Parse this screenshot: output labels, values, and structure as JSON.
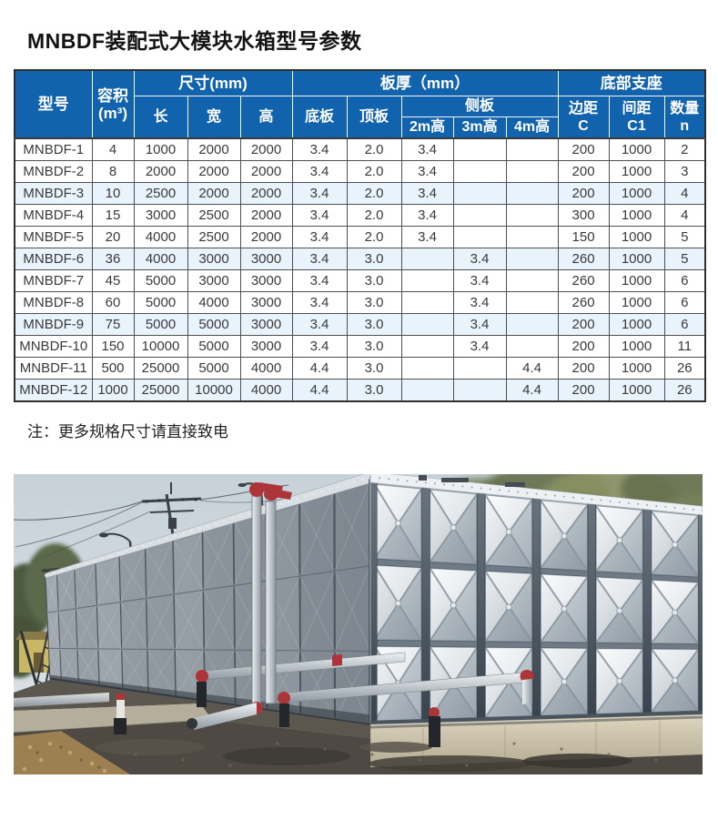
{
  "page": {
    "title": "MNBDF装配式大模块水箱型号参数",
    "note": "注：更多规格尺寸请直接致电"
  },
  "table": {
    "headers": {
      "model": "型号",
      "capacity_line1": "容积",
      "capacity_line2": "(m³)",
      "size_group": "尺寸(mm)",
      "length": "长",
      "width": "宽",
      "height": "高",
      "thickness_group": "板厚（mm）",
      "bottom_plate": "底板",
      "top_plate": "顶板",
      "side_plate_group": "侧板",
      "side_2m": "2m高",
      "side_3m": "3m高",
      "side_4m": "4m高",
      "support_group": "底部支座",
      "edge_line1": "边距",
      "edge_line2": "C",
      "spacing_line1": "间距",
      "spacing_line2": "C1",
      "qty_line1": "数量",
      "qty_line2": "n"
    },
    "rows": [
      [
        "MNBDF-1",
        "4",
        "1000",
        "2000",
        "2000",
        "3.4",
        "2.0",
        "3.4",
        "",
        "",
        "200",
        "1000",
        "2"
      ],
      [
        "MNBDF-2",
        "8",
        "2000",
        "2000",
        "2000",
        "3.4",
        "2.0",
        "3.4",
        "",
        "",
        "200",
        "1000",
        "3"
      ],
      [
        "MNBDF-3",
        "10",
        "2500",
        "2000",
        "2000",
        "3.4",
        "2.0",
        "3.4",
        "",
        "",
        "200",
        "1000",
        "4"
      ],
      [
        "MNBDF-4",
        "15",
        "3000",
        "2500",
        "2000",
        "3.4",
        "2.0",
        "3.4",
        "",
        "",
        "300",
        "1000",
        "4"
      ],
      [
        "MNBDF-5",
        "20",
        "4000",
        "2500",
        "2000",
        "3.4",
        "2.0",
        "3.4",
        "",
        "",
        "150",
        "1000",
        "5"
      ],
      [
        "MNBDF-6",
        "36",
        "4000",
        "3000",
        "3000",
        "3.4",
        "3.0",
        "",
        "3.4",
        "",
        "260",
        "1000",
        "5"
      ],
      [
        "MNBDF-7",
        "45",
        "5000",
        "3000",
        "3000",
        "3.4",
        "3.0",
        "",
        "3.4",
        "",
        "260",
        "1000",
        "6"
      ],
      [
        "MNBDF-8",
        "60",
        "5000",
        "4000",
        "3000",
        "3.4",
        "3.0",
        "",
        "3.4",
        "",
        "260",
        "1000",
        "6"
      ],
      [
        "MNBDF-9",
        "75",
        "5000",
        "5000",
        "3000",
        "3.4",
        "3.0",
        "",
        "3.4",
        "",
        "200",
        "1000",
        "6"
      ],
      [
        "MNBDF-10",
        "150",
        "10000",
        "5000",
        "3000",
        "3.4",
        "3.0",
        "",
        "3.4",
        "",
        "200",
        "1000",
        "11"
      ],
      [
        "MNBDF-11",
        "500",
        "25000",
        "5000",
        "4000",
        "4.4",
        "3.0",
        "",
        "",
        "4.4",
        "200",
        "1000",
        "26"
      ],
      [
        "MNBDF-12",
        "1000",
        "25000",
        "10000",
        "4000",
        "4.4",
        "3.0",
        "",
        "",
        "4.4",
        "200",
        "1000",
        "26"
      ]
    ],
    "shaded_row_indexes": [
      2,
      5,
      8,
      11
    ]
  },
  "colors": {
    "header_bg": "#1263ae",
    "header_text": "#ffffff",
    "row_shaded": "#e9f3fb",
    "cell_text": "#3a3a3a",
    "title_text": "#141414"
  },
  "photo": {
    "colors": {
      "sky_top": "#c7d1d8",
      "sky_bottom": "#e0e6ea",
      "panel_light": "#f4f6f8",
      "panel_mid": "#b4bec6",
      "panel_light2": "#e6ebee",
      "panel_mid2": "#a6b1b9",
      "frame_light": "#68747e",
      "frame_dark": "#39434d",
      "flange": "#eef1f3",
      "left_far": "#9aa2a9",
      "left_near": "#7d868e",
      "left_mullion": "#4d5761",
      "concrete_top": "#ded5bf",
      "concrete_bot": "#b3aa92",
      "walkway": "#b6ae9c",
      "dirt_dark": "#4e4942",
      "dirt_mid": "#5b564e",
      "mound_tan": "#9c8051",
      "pipe_light": "#eef1f3",
      "pipe_dark": "#8f99a1",
      "pipe_red": "#ac3539",
      "pipe_black": "#23262a",
      "tree_green1": "#77815c",
      "tree_green2": "#67714e",
      "tree_green3": "#8a9165",
      "tree_dark": "#4e5a41",
      "building_yellow": "#c9b765",
      "pole_dark": "#3b4046",
      "wire": "#474d53"
    }
  }
}
